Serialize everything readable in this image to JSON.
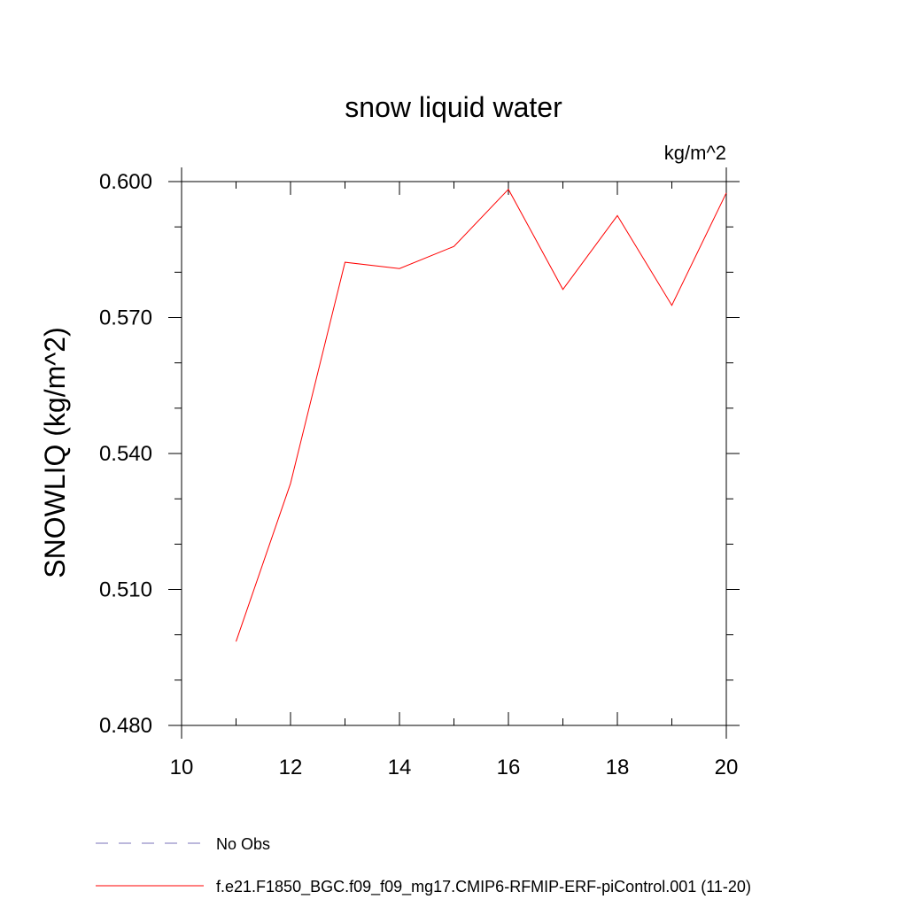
{
  "chart_data": {
    "type": "line",
    "title": "snow liquid water",
    "units": "kg/m^2",
    "xlabel": "",
    "ylabel": "SNOWLIQ  (kg/m^2)",
    "xlim": [
      10,
      20
    ],
    "ylim": [
      0.48,
      0.6
    ],
    "x_ticks": [
      10,
      12,
      14,
      16,
      18,
      20
    ],
    "x_tick_labels": [
      "10",
      "12",
      "14",
      "16",
      "18",
      "20"
    ],
    "y_ticks": [
      0.48,
      0.51,
      0.54,
      0.57,
      0.6
    ],
    "y_tick_labels": [
      "0.480",
      "0.510",
      "0.540",
      "0.570",
      "0.600"
    ],
    "x_minor_step": 1,
    "y_minor_step": 0.01,
    "grid": false,
    "legend_position": "bottom-left, below plot",
    "series": [
      {
        "name": "f.e21.F1850_BGC.f09_f09_mg17.CMIP6-RFMIP-ERF-piControl.001 (11-20)",
        "color": "#ff0000",
        "dash": "solid",
        "x": [
          11,
          12,
          13,
          14,
          15,
          16,
          17,
          18,
          19,
          20
        ],
        "y": [
          0.4985,
          0.5334,
          0.5822,
          0.5808,
          0.5857,
          0.5983,
          0.5762,
          0.5925,
          0.5727,
          0.5975
        ]
      }
    ],
    "legend": [
      {
        "name": "No Obs",
        "color": "#7a70b8",
        "dash": "dashed"
      },
      {
        "name": "f.e21.F1850_BGC.f09_f09_mg17.CMIP6-RFMIP-ERF-piControl.001 (11-20)",
        "color": "#ff0000",
        "dash": "solid"
      }
    ]
  }
}
